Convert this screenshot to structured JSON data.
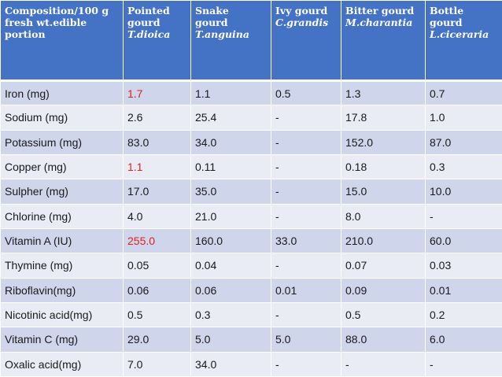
{
  "table": {
    "header": {
      "composition": [
        "Composition/100 g",
        "fresh wt.edible",
        "portion"
      ],
      "columns": [
        {
          "common": [
            "Pointed",
            "gourd"
          ],
          "scientific": "T.dioica"
        },
        {
          "common": [
            "Snake",
            "gourd"
          ],
          "scientific": "T.anguina"
        },
        {
          "common": [
            "Ivy gourd"
          ],
          "scientific": "C.grandis"
        },
        {
          "common": [
            "Bitter gourd"
          ],
          "scientific": "M.charantia"
        },
        {
          "common": [
            "Bottle",
            "gourd"
          ],
          "scientific": "L.ciceraria"
        }
      ]
    },
    "highlight_color": "#e0201f",
    "rows": [
      {
        "label": "Iron (mg)",
        "values": [
          "1.7",
          "1.1",
          "0.5",
          "1.3",
          "0.7"
        ],
        "highlight": [
          0
        ]
      },
      {
        "label": "Sodium (mg)",
        "values": [
          "2.6",
          "25.4",
          "-",
          "17.8",
          "1.0"
        ],
        "highlight": []
      },
      {
        "label": "Potassium (mg)",
        "values": [
          "83.0",
          "34.0",
          "-",
          "152.0",
          "87.0"
        ],
        "highlight": []
      },
      {
        "label": "Copper (mg)",
        "values": [
          "1.1",
          "0.11",
          "-",
          "0.18",
          "0.3"
        ],
        "highlight": [
          0
        ]
      },
      {
        "label": "Sulpher (mg)",
        "values": [
          "17.0",
          "35.0",
          "-",
          "15.0",
          "10.0"
        ],
        "highlight": []
      },
      {
        "label": "Chlorine (mg)",
        "values": [
          "4.0",
          "21.0",
          "-",
          "8.0",
          "-"
        ],
        "highlight": []
      },
      {
        "label": "Vitamin A (IU)",
        "values": [
          "255.0",
          "160.0",
          "33.0",
          "210.0",
          "60.0"
        ],
        "highlight": [
          0
        ]
      },
      {
        "label": "Thymine (mg)",
        "values": [
          "0.05",
          "0.04",
          "-",
          "0.07",
          "0.03"
        ],
        "highlight": []
      },
      {
        "label": "Riboflavin(mg)",
        "values": [
          "0.06",
          "0.06",
          "0.01",
          "0.09",
          "0.01"
        ],
        "highlight": []
      },
      {
        "label": "Nicotinic acid(mg)",
        "values": [
          "0.5",
          "0.3",
          "-",
          "0.5",
          "0.2"
        ],
        "highlight": []
      },
      {
        "label": "Vitamin C (mg)",
        "values": [
          "29.0",
          "5.0",
          "5.0",
          "88.0",
          "6.0"
        ],
        "highlight": []
      },
      {
        "label": "Oxalic acid(mg)",
        "values": [
          "7.0",
          "34.0",
          "-",
          "-",
          "-"
        ],
        "highlight": []
      }
    ]
  }
}
